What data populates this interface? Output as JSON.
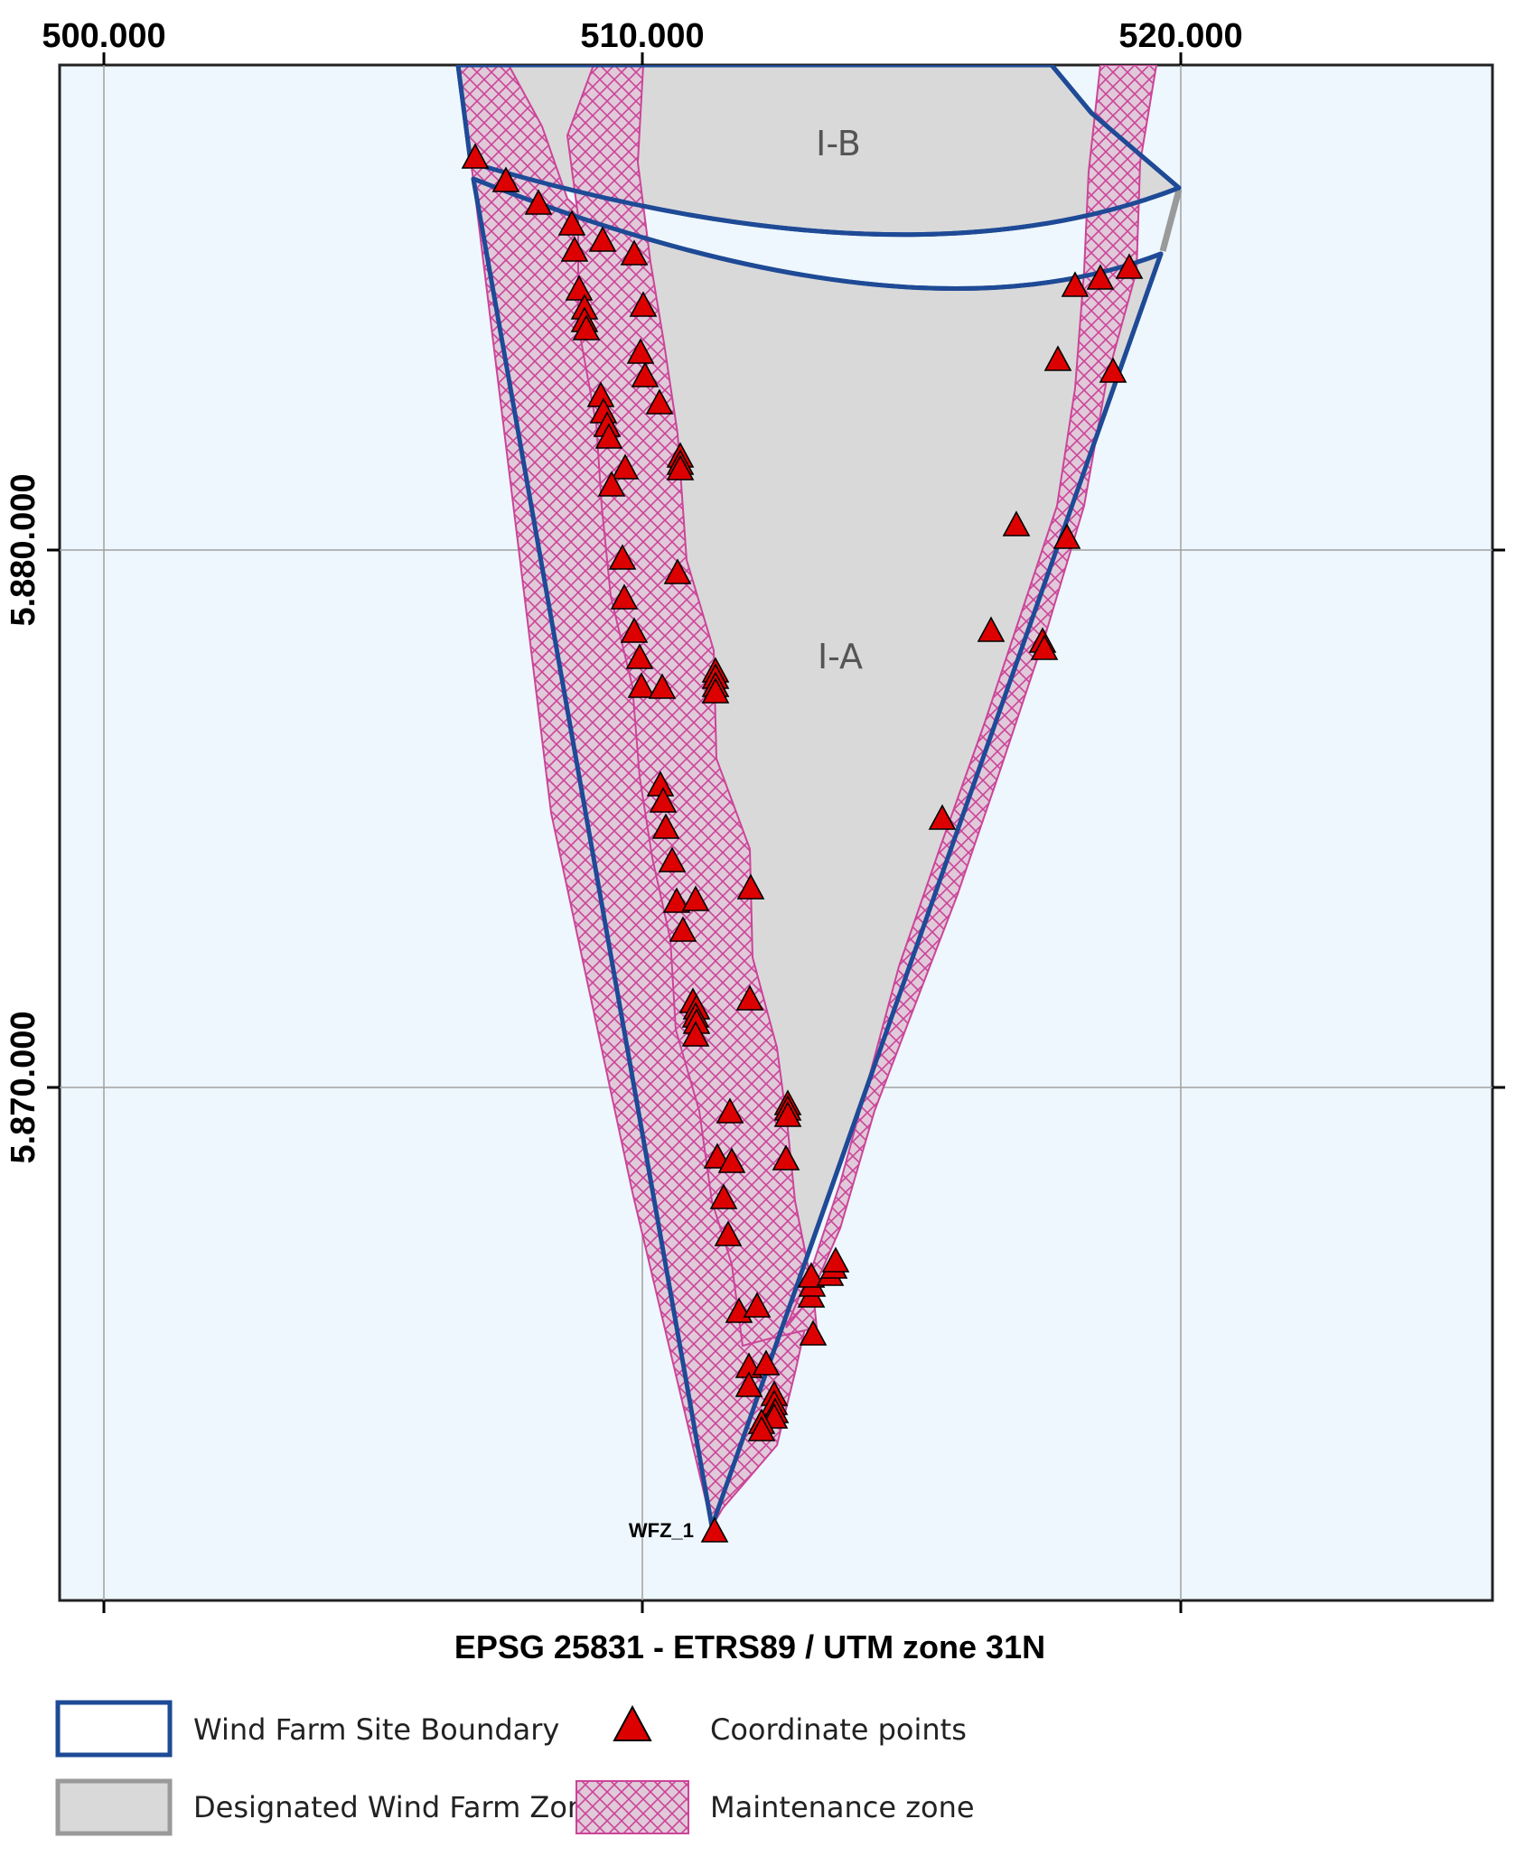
{
  "map": {
    "crs_label": "EPSG 25831 - ETRS89 / UTM zone 31N",
    "x_ticks": [
      "500.000",
      "510.000",
      "520.000"
    ],
    "y_ticks": [
      "5.880.000",
      "5.870.000"
    ],
    "zone_labels": [
      "I-B",
      "I-A"
    ],
    "point_label": "WFZ_1",
    "colors": {
      "map_background": "#eef7fd",
      "boundary": "#1e4a96",
      "designated_zone": "#d9d9d9",
      "maintenance_hatch": "#cc4499",
      "points": "#dd0000",
      "grid": "#a0a0a0"
    }
  },
  "legend": {
    "items": [
      {
        "label": "Wind Farm Site Boundary",
        "symbol": "boundary"
      },
      {
        "label": "Coordinate points",
        "symbol": "triangle-point-icon"
      },
      {
        "label": "Designated Wind Farm Zone",
        "symbol": "zone"
      },
      {
        "label": "Maintenance zone",
        "symbol": "hatch"
      }
    ]
  }
}
